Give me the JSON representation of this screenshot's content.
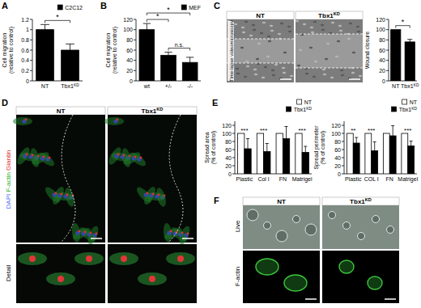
{
  "panel_labels": [
    "A",
    "B",
    "C",
    "D",
    "E",
    "F"
  ],
  "chart_data": [
    {
      "type": "bar",
      "y_label": [
        "Cell migration",
        "(relative to control)"
      ],
      "categories": [
        "NT",
        "Tbx1KD"
      ],
      "series": [
        {
          "name": "C2C12",
          "color": "#000000",
          "values": [
            1.0,
            0.6
          ],
          "errors": [
            0.1,
            0.12
          ]
        }
      ],
      "ylim": [
        0,
        1.2
      ],
      "yticks": [
        0,
        0.2,
        0.4,
        0.6,
        0.8,
        1,
        1.2
      ],
      "legend": "top-right",
      "annotations": [
        {
          "text": "*",
          "from": 0,
          "to": 1
        }
      ]
    },
    {
      "type": "bar",
      "y_label": [
        "Cell migration",
        "(relative to control)"
      ],
      "categories": [
        "wt",
        "+/-",
        "-/-"
      ],
      "series": [
        {
          "name": "MEF",
          "color": "#000000",
          "values": [
            100,
            50,
            36
          ],
          "errors": [
            12,
            6,
            10
          ]
        }
      ],
      "ylim": [
        0,
        120
      ],
      "yticks": [
        0,
        20,
        40,
        60,
        80,
        100,
        120
      ],
      "legend": "top-right",
      "annotations": [
        {
          "text": "*",
          "from": 0,
          "to": 1
        },
        {
          "text": "*",
          "from": 0,
          "to": 2
        },
        {
          "text": "n.s.",
          "from": 1,
          "to": 2
        }
      ]
    },
    {
      "type": "bar",
      "y_label": [
        "Wound closure"
      ],
      "categories": [
        "NT",
        "Tbx1KD"
      ],
      "values": [
        100,
        76
      ],
      "errors": [
        null,
        5
      ],
      "color": "#000000",
      "ylim": [
        0,
        120
      ],
      "yticks": [
        0,
        20,
        40,
        60,
        80,
        100,
        120
      ],
      "annotations": [
        {
          "text": "*",
          "from": 0,
          "to": 1
        }
      ]
    },
    {
      "type": "bar",
      "y_label": [
        "Spread area",
        "(% of control)"
      ],
      "categories": [
        "Plastic",
        "Col I",
        "FN",
        "Matrigel"
      ],
      "series": [
        {
          "name": "NT",
          "color": "#ffffff",
          "values": [
            100,
            100,
            100,
            100
          ]
        },
        {
          "name": "Tbx1KD",
          "color": "#000000",
          "values": [
            62,
            55,
            87,
            53
          ],
          "errors": [
            25,
            20,
            30,
            15
          ]
        }
      ],
      "ylim": [
        0,
        130
      ],
      "yticks": [
        0,
        20,
        40,
        60,
        80,
        100,
        120
      ],
      "legend": "top-right",
      "annotations": [
        {
          "text": "***",
          "from": 0,
          "to": 0
        },
        {
          "text": "***",
          "from": 1,
          "to": 1
        },
        {
          "text": "***",
          "from": 3,
          "to": 3
        }
      ]
    },
    {
      "type": "bar",
      "y_label": [
        "Spread perimeter",
        "(% of control)"
      ],
      "categories": [
        "Plastic",
        "COL I",
        "FN",
        "Matrigel"
      ],
      "series": [
        {
          "name": "NT",
          "color": "#ffffff",
          "values": [
            100,
            100,
            100,
            100
          ]
        },
        {
          "name": "Tbx1KD",
          "color": "#000000",
          "values": [
            76,
            57,
            94,
            69
          ],
          "errors": [
            14,
            22,
            25,
            12
          ]
        }
      ],
      "ylim": [
        0,
        130
      ],
      "yticks": [
        0,
        20,
        40,
        60,
        80,
        100,
        120
      ],
      "legend": "top-right",
      "annotations": [
        {
          "text": "**",
          "from": 0,
          "to": 0
        },
        {
          "text": "***",
          "from": 1,
          "to": 1
        },
        {
          "text": "***",
          "from": 3,
          "to": 3
        }
      ]
    }
  ],
  "images": {
    "C": {
      "titles": [
        "NT",
        "Tbx1KD"
      ],
      "side_label": "Time-lapse videomicroscopy"
    },
    "D": {
      "titles": [
        "NT",
        "Tbx1KD"
      ],
      "stain_labels": [
        "DAPI",
        "F-actin",
        "Giantin"
      ],
      "row_label": "Detail"
    },
    "F": {
      "titles": [
        "NT",
        "Tbx1KD"
      ],
      "row_labels": [
        "Live",
        "F-actin"
      ]
    }
  }
}
